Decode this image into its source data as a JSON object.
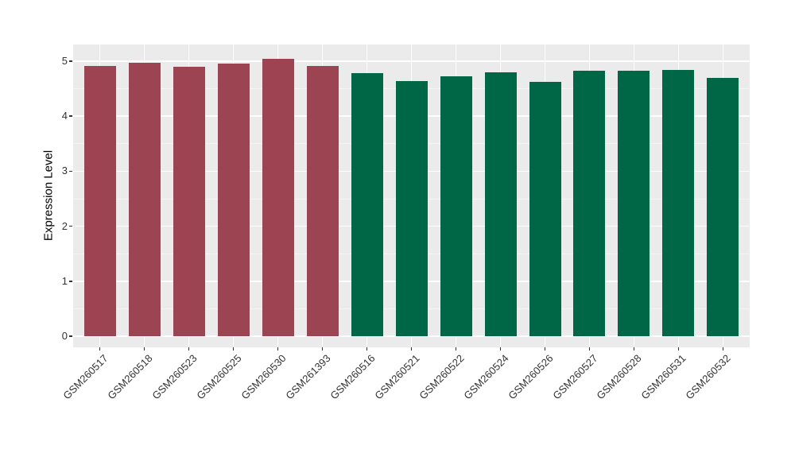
{
  "chart_data": {
    "type": "bar",
    "title": "",
    "xlabel": "",
    "ylabel": "Expression Level",
    "categories": [
      "GSM260517",
      "GSM260518",
      "GSM260523",
      "GSM260525",
      "GSM260530",
      "GSM261393",
      "GSM260516",
      "GSM260521",
      "GSM260522",
      "GSM260524",
      "GSM260526",
      "GSM260527",
      "GSM260528",
      "GSM260531",
      "GSM260532"
    ],
    "values": [
      4.92,
      4.97,
      4.9,
      4.96,
      5.04,
      4.92,
      4.78,
      4.64,
      4.73,
      4.8,
      4.62,
      4.82,
      4.82,
      4.84,
      4.69
    ],
    "bar_colors": [
      "#9D4452",
      "#9D4452",
      "#9D4452",
      "#9D4452",
      "#9D4452",
      "#9D4452",
      "#006746",
      "#006746",
      "#006746",
      "#006746",
      "#006746",
      "#006746",
      "#006746",
      "#006746",
      "#006746"
    ],
    "group_colors": {
      "first_six": "#9D4452",
      "last_nine": "#006746"
    },
    "y_ticks": [
      0,
      1,
      2,
      3,
      4,
      5
    ],
    "ylim": [
      -0.2,
      5.3
    ],
    "legend_position": "none",
    "grid": "on",
    "styles": {
      "panel_bg": "#EBEBEB",
      "grid_major": "#FFFFFF",
      "grid_minor": "#F5F5F5",
      "tick_mark_color": "#333333",
      "tick_label_color": "#333333",
      "axis_title_color": "#000000",
      "background": "#FFFFFF"
    }
  }
}
